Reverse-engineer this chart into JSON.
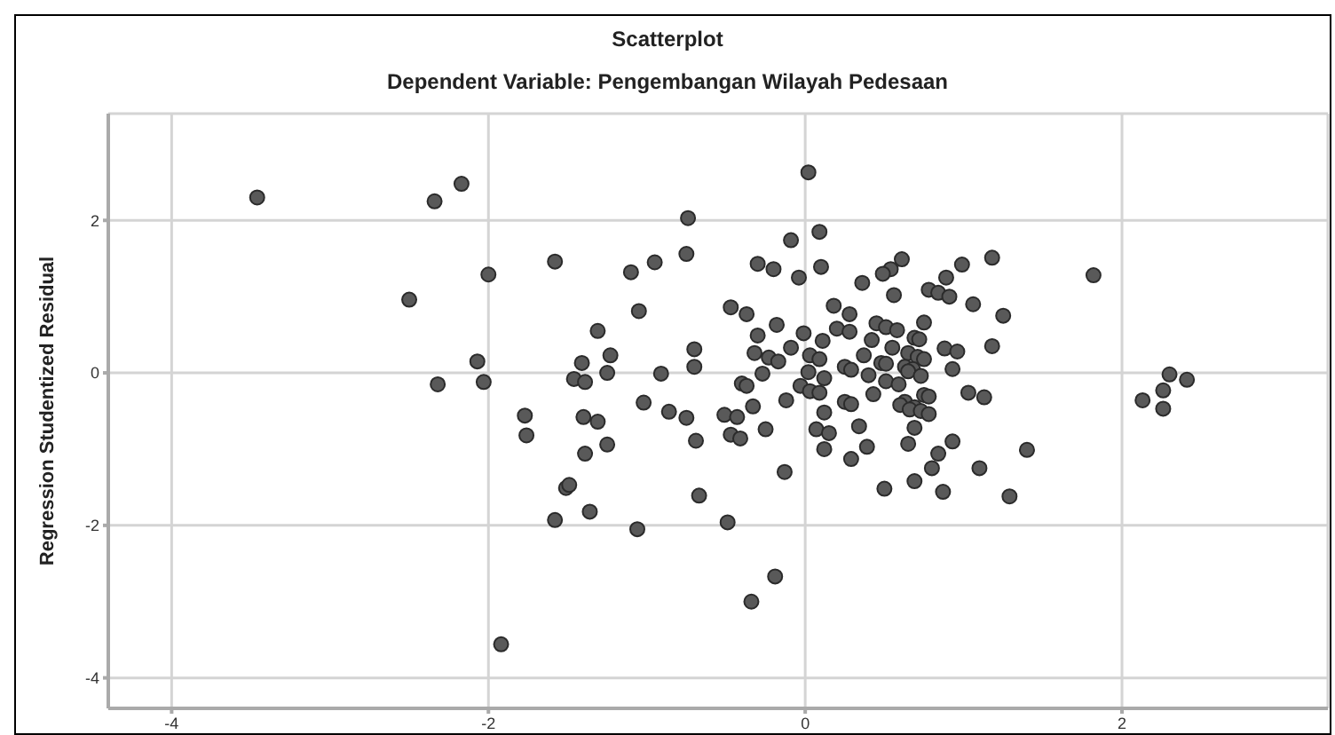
{
  "chart_data": {
    "type": "scatter",
    "title": "Scatterplot",
    "subtitle": "Dependent Variable: Pengembangan Wilayah Pedesaan",
    "ylabel": "Regression Studentized Residual",
    "xlim": [
      -4.4,
      3.3
    ],
    "ylim": [
      -4.4,
      3.4
    ],
    "xticks": [
      -4,
      -2,
      0,
      2
    ],
    "yticks": [
      -4,
      -2,
      0,
      2
    ],
    "grid": true,
    "marker": "circle",
    "series": [
      {
        "color": "#595959",
        "x": [
          -3.46,
          -2.34,
          -2.17,
          -2.0,
          -2.5,
          -2.07,
          -2.32,
          -2.03,
          -1.77,
          -1.76,
          -1.92,
          0.02,
          -0.74,
          0.09,
          -0.09,
          -1.58,
          -0.75,
          -0.95,
          -1.1,
          -0.3,
          -0.2,
          0.1,
          -0.04,
          0.36,
          0.61,
          0.54,
          0.49,
          0.56,
          -1.05,
          -0.47,
          -0.37,
          0.18,
          0.28,
          -1.31,
          -0.18,
          0.2,
          0.28,
          0.45,
          0.51,
          0.58,
          0.69,
          -0.01,
          -0.3,
          0.11,
          0.42,
          -1.23,
          -1.41,
          -0.7,
          -0.09,
          -0.32,
          -0.23,
          -0.17,
          0.03,
          0.09,
          0.37,
          0.55,
          0.65,
          0.71,
          -1.25,
          -0.91,
          -0.7,
          -1.46,
          -1.39,
          -0.27,
          0.02,
          0.25,
          0.29,
          0.4,
          0.48,
          0.51,
          0.63,
          0.68,
          -0.4,
          -0.37,
          0.12,
          0.51,
          0.59,
          -0.03,
          0.03,
          0.09,
          0.43,
          -1.02,
          -0.86,
          -0.75,
          -1.4,
          -1.31,
          -0.51,
          -0.43,
          -0.33,
          -0.12,
          0.12,
          0.25,
          0.29,
          0.63,
          0.69,
          -1.39,
          -1.25,
          -0.69,
          -0.47,
          -0.41,
          -0.25,
          0.07,
          0.15,
          0.12,
          0.34,
          0.39,
          0.29,
          0.65,
          0.69,
          0.69,
          0.5,
          -0.13,
          -1.51,
          -1.49,
          -1.58,
          -1.36,
          -1.06,
          -0.67,
          -0.49,
          -0.19,
          -0.34,
          1.18,
          0.99,
          0.89,
          1.82,
          0.78,
          0.84,
          0.91,
          1.06,
          1.25,
          0.75,
          0.72,
          0.75,
          0.88,
          0.96,
          1.18,
          0.93,
          0.65,
          0.73,
          1.03,
          1.13,
          0.75,
          0.78,
          0.6,
          0.66,
          0.73,
          0.78,
          0.93,
          0.84,
          1.4,
          0.8,
          1.1,
          0.87,
          1.29,
          2.3,
          2.41,
          2.26,
          2.13,
          2.26
        ],
        "values": [
          2.3,
          2.25,
          2.48,
          1.29,
          0.96,
          0.15,
          -0.15,
          -0.12,
          -0.56,
          -0.82,
          -3.56,
          2.63,
          2.03,
          1.85,
          1.74,
          1.46,
          1.56,
          1.45,
          1.32,
          1.43,
          1.36,
          1.39,
          1.25,
          1.18,
          1.49,
          1.36,
          1.3,
          1.02,
          0.81,
          0.86,
          0.77,
          0.88,
          0.77,
          0.55,
          0.63,
          0.58,
          0.54,
          0.65,
          0.6,
          0.56,
          0.46,
          0.52,
          0.49,
          0.42,
          0.43,
          0.23,
          0.13,
          0.31,
          0.33,
          0.26,
          0.2,
          0.15,
          0.23,
          0.18,
          0.23,
          0.33,
          0.26,
          0.21,
          0.0,
          -0.01,
          0.08,
          -0.08,
          -0.12,
          -0.01,
          0.01,
          0.08,
          0.04,
          -0.03,
          0.13,
          0.12,
          0.08,
          0.05,
          -0.14,
          -0.17,
          -0.07,
          -0.11,
          -0.15,
          -0.17,
          -0.24,
          -0.26,
          -0.28,
          -0.39,
          -0.51,
          -0.59,
          -0.58,
          -0.64,
          -0.55,
          -0.58,
          -0.44,
          -0.36,
          -0.52,
          -0.38,
          -0.41,
          -0.38,
          -0.45,
          -1.06,
          -0.94,
          -0.89,
          -0.81,
          -0.86,
          -0.74,
          -0.74,
          -0.79,
          -1.0,
          -0.7,
          -0.97,
          -1.13,
          -0.93,
          -0.72,
          -1.42,
          -1.52,
          -1.3,
          -1.51,
          -1.47,
          -1.93,
          -1.82,
          -2.05,
          -1.61,
          -1.96,
          -2.67,
          -3.0,
          1.51,
          1.42,
          1.25,
          1.28,
          1.09,
          1.05,
          1.0,
          0.9,
          0.75,
          0.66,
          0.44,
          0.18,
          0.32,
          0.28,
          0.35,
          0.05,
          0.02,
          -0.04,
          -0.26,
          -0.32,
          -0.29,
          -0.31,
          -0.42,
          -0.48,
          -0.5,
          -0.54,
          -0.9,
          -1.06,
          -1.01,
          -1.25,
          -1.25,
          -1.56,
          -1.62,
          -0.02,
          -0.09,
          -0.23,
          -0.36,
          -0.47
        ]
      }
    ]
  }
}
